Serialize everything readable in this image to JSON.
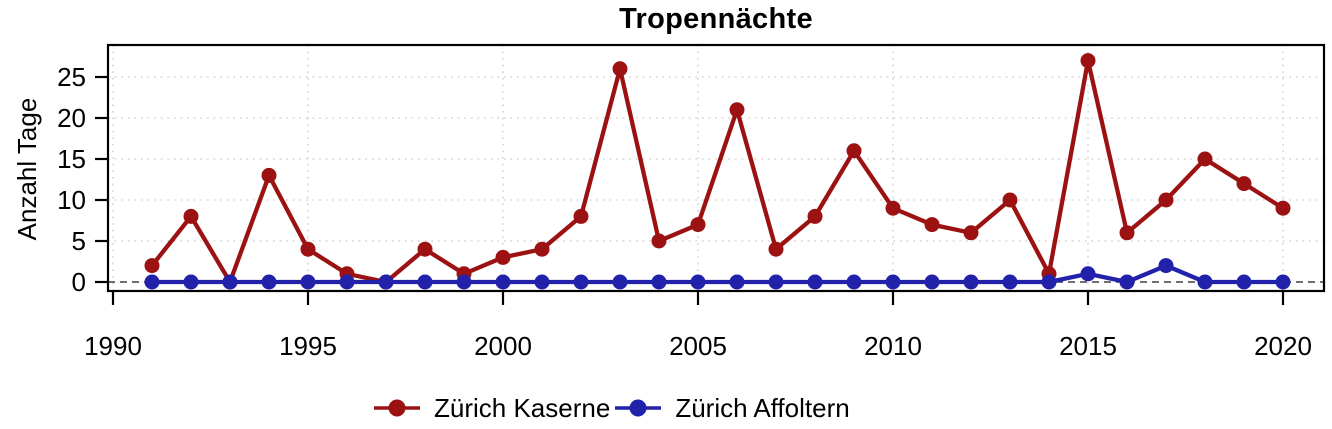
{
  "chart_data": {
    "type": "line",
    "title": "Tropennächte",
    "xlabel": "",
    "ylabel": "Anzahl Tage",
    "x": [
      1991,
      1992,
      1993,
      1994,
      1995,
      1996,
      1997,
      1998,
      1999,
      2000,
      2001,
      2002,
      2003,
      2004,
      2005,
      2006,
      2007,
      2008,
      2009,
      2010,
      2011,
      2012,
      2013,
      2014,
      2015,
      2016,
      2017,
      2018,
      2019,
      2020
    ],
    "series": [
      {
        "name": "Zürich Kaserne",
        "color": "#9C1212",
        "values": [
          2,
          8,
          0,
          13,
          4,
          1,
          0,
          4,
          1,
          3,
          4,
          8,
          26,
          5,
          7,
          21,
          4,
          8,
          16,
          9,
          7,
          6,
          10,
          1,
          27,
          6,
          10,
          15,
          12,
          9
        ]
      },
      {
        "name": "Zürich Affoltern",
        "color": "#2121AA",
        "values": [
          0,
          0,
          0,
          0,
          0,
          0,
          0,
          0,
          0,
          0,
          0,
          0,
          0,
          0,
          0,
          0,
          0,
          0,
          0,
          0,
          0,
          0,
          0,
          0,
          1,
          0,
          2,
          0,
          0,
          0
        ]
      }
    ],
    "x_ticks": [
      1990,
      1995,
      2000,
      2005,
      2010,
      2015,
      2020
    ],
    "y_ticks": [
      0,
      5,
      10,
      15,
      20,
      25
    ],
    "xlim": [
      1990,
      2021
    ],
    "ylim": [
      0,
      28.9
    ],
    "grid": "dotted-lightgray",
    "zero_line": "dashed-darkgray",
    "legend_position": "bottom",
    "grid_color": "#C9C9C9",
    "zero_line_color": "#404040",
    "axis_color": "#000000"
  }
}
